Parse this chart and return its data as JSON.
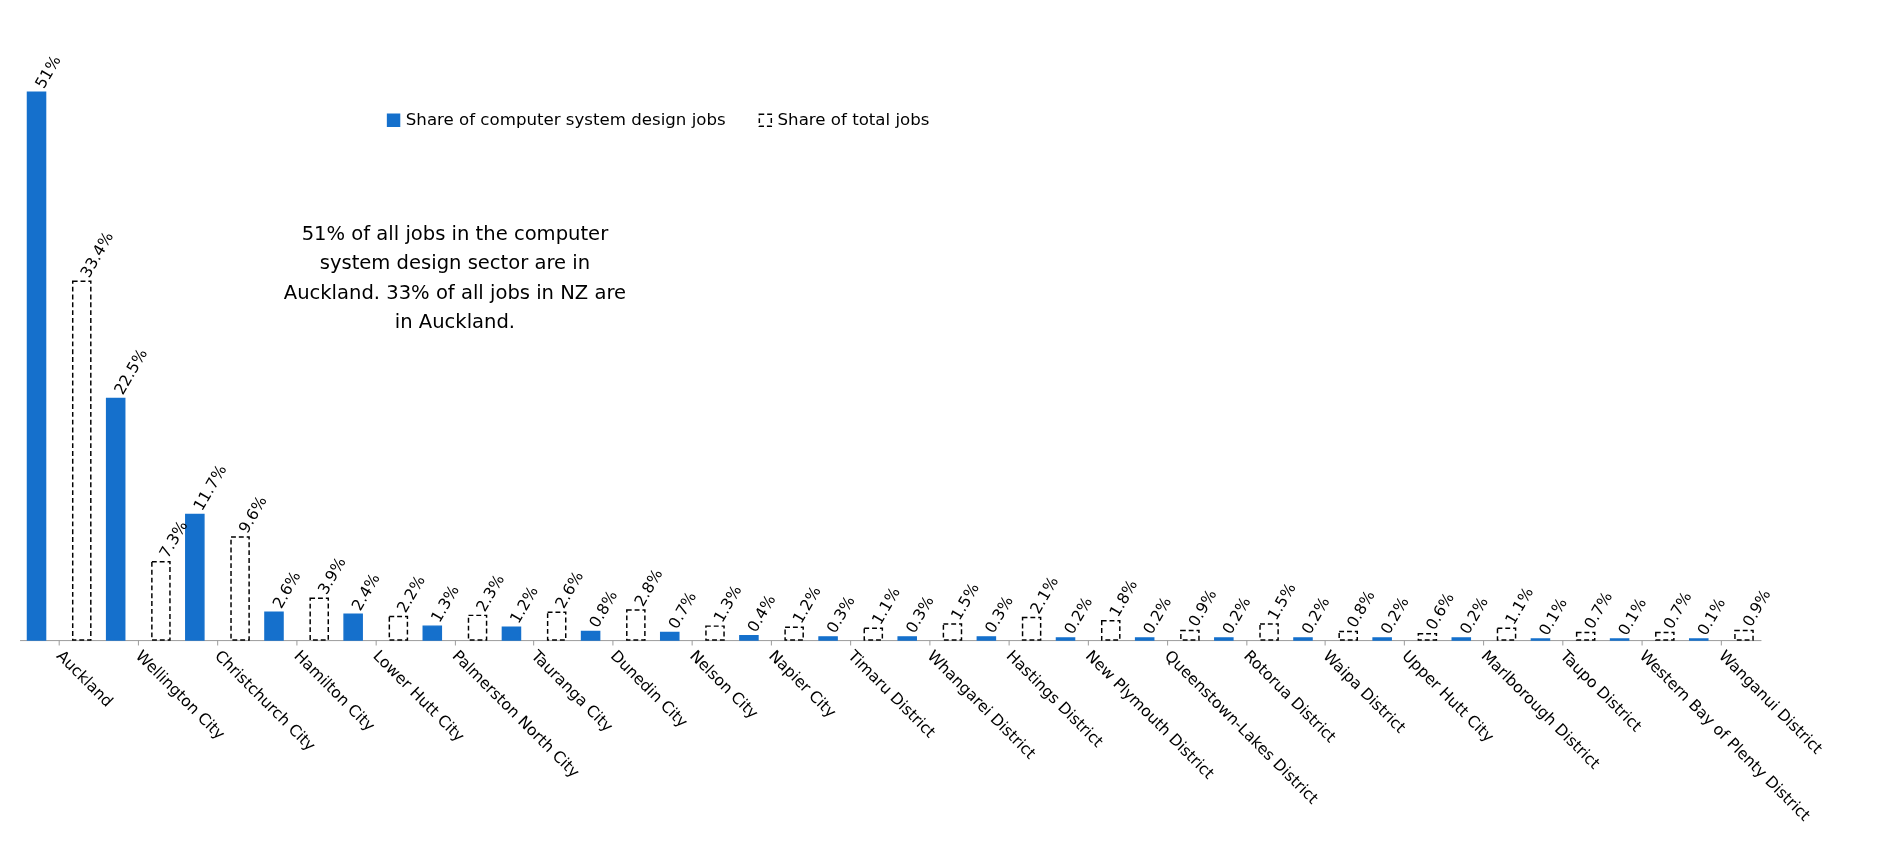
{
  "chart_data": {
    "type": "bar",
    "categories": [
      "Auckland",
      "Wellington City",
      "Christchurch City",
      "Hamilton City",
      "Lower Hutt City",
      "Palmerston North City",
      "Tauranga City",
      "Dunedin City",
      "Nelson City",
      "Napier City",
      "Timaru District",
      "Whangarei District",
      "Hastings District",
      "New Plymouth District",
      "Queenstown-Lakes District",
      "Rotorua District",
      "Waipa District",
      "Upper Hutt City",
      "Marlborough District",
      "Taupo District",
      "Western Bay of Plenty District",
      "Wanganui District"
    ],
    "series": [
      {
        "name": "Share of computer system design jobs",
        "color": "#1570cc",
        "line_style": "solid",
        "values": [
          51,
          22.5,
          11.7,
          2.6,
          2.4,
          1.3,
          1.2,
          0.8,
          0.7,
          0.4,
          0.3,
          0.3,
          0.3,
          0.2,
          0.2,
          0.2,
          0.2,
          0.2,
          0.2,
          0.1,
          0.1,
          0.1
        ],
        "value_labels": [
          "51%",
          "22.5%",
          "11.7%",
          "2.6%",
          "2.4%",
          "1.3%",
          "1.2%",
          "0.8%",
          "0.7%",
          "0.4%",
          "0.3%",
          "0.3%",
          "0.3%",
          "0.2%",
          "0.2%",
          "0.2%",
          "0.2%",
          "0.2%",
          "0.2%",
          "0.1%",
          "0.1%",
          "0.1%"
        ]
      },
      {
        "name": "Share of total jobs",
        "color": "#ffffff",
        "line_style": "dashed",
        "values": [
          33.4,
          7.3,
          9.6,
          3.9,
          2.2,
          2.3,
          2.6,
          2.8,
          1.3,
          1.2,
          1.1,
          1.5,
          2.1,
          1.8,
          0.9,
          1.5,
          0.8,
          0.6,
          1.1,
          0.7,
          0.7,
          0.9
        ],
        "value_labels": [
          "33.4%",
          "7.3%",
          "9.6%",
          "3.9%",
          "2.2%",
          "2.3%",
          "2.6%",
          "2.8%",
          "1.3%",
          "1.2%",
          "1.1%",
          "1.5%",
          "2.1%",
          "1.8%",
          "0.9%",
          "1.5%",
          "0.8%",
          "0.6%",
          "1.1%",
          "0.7%",
          "0.7%",
          "0.9%"
        ]
      }
    ],
    "legend": "top",
    "annotations": [
      "51% of all jobs in the computer system design sector are in Auckland. 33% of all jobs in NZ are in Auckland."
    ]
  }
}
